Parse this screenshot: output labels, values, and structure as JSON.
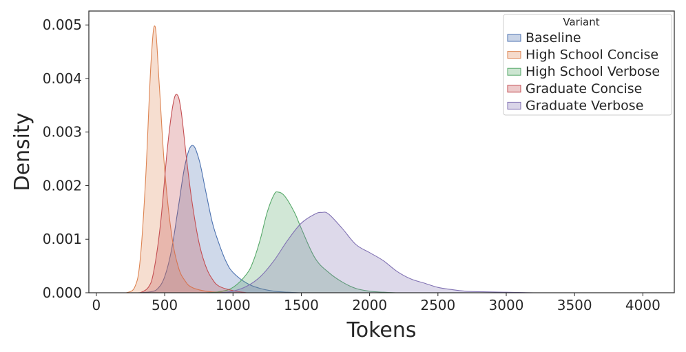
{
  "chart_data": {
    "type": "area",
    "title": "",
    "xlabel": "Tokens",
    "ylabel": "Density",
    "xlim": [
      -55,
      4230
    ],
    "ylim": [
      0,
      0.00526
    ],
    "x_ticks": [
      0,
      500,
      1000,
      1500,
      2000,
      2500,
      3000,
      3500,
      4000
    ],
    "x_tick_labels": [
      "0",
      "500",
      "1000",
      "1500",
      "2000",
      "2500",
      "3000",
      "3500",
      "4000"
    ],
    "y_ticks": [
      0,
      0.001,
      0.002,
      0.003,
      0.004,
      0.005
    ],
    "y_tick_labels": [
      "0.000",
      "0.001",
      "0.002",
      "0.003",
      "0.004",
      "0.005"
    ],
    "grid": false,
    "legend": {
      "title": "Variant",
      "placement": "top-right"
    },
    "series": [
      {
        "name": "Baseline",
        "color": "#4c72b0",
        "points": [
          [
            300,
            0
          ],
          [
            400,
            2e-05
          ],
          [
            450,
            8e-05
          ],
          [
            500,
            0.0003
          ],
          [
            550,
            0.0008
          ],
          [
            600,
            0.0016
          ],
          [
            650,
            0.0024
          ],
          [
            700,
            0.00275
          ],
          [
            750,
            0.0025
          ],
          [
            800,
            0.0019
          ],
          [
            850,
            0.0013
          ],
          [
            900,
            0.0009
          ],
          [
            950,
            0.00058
          ],
          [
            1000,
            0.00038
          ],
          [
            1100,
            0.00018
          ],
          [
            1200,
            8e-05
          ],
          [
            1300,
            3e-05
          ],
          [
            1400,
            1e-05
          ],
          [
            1500,
            0
          ]
        ]
      },
      {
        "name": "High School Concise",
        "color": "#dd8452",
        "points": [
          [
            220,
            0
          ],
          [
            280,
            0.0001
          ],
          [
            320,
            0.0006
          ],
          [
            360,
            0.0021
          ],
          [
            400,
            0.0043
          ],
          [
            430,
            0.00497
          ],
          [
            460,
            0.0039
          ],
          [
            500,
            0.0023
          ],
          [
            550,
            0.0011
          ],
          [
            600,
            0.00048
          ],
          [
            650,
            0.00022
          ],
          [
            700,
            0.0001
          ],
          [
            800,
            3e-05
          ],
          [
            900,
            1e-05
          ],
          [
            1000,
            0
          ]
        ]
      },
      {
        "name": "High School Verbose",
        "color": "#55a868",
        "points": [
          [
            800,
            0
          ],
          [
            900,
            2e-05
          ],
          [
            1000,
            0.0001
          ],
          [
            1100,
            0.00035
          ],
          [
            1150,
            0.0006
          ],
          [
            1200,
            0.001
          ],
          [
            1250,
            0.0015
          ],
          [
            1300,
            0.00183
          ],
          [
            1330,
            0.00188
          ],
          [
            1380,
            0.0018
          ],
          [
            1450,
            0.0015
          ],
          [
            1500,
            0.0012
          ],
          [
            1600,
            0.00065
          ],
          [
            1700,
            0.00038
          ],
          [
            1800,
            0.0002
          ],
          [
            1900,
            8e-05
          ],
          [
            2000,
            3e-05
          ],
          [
            2100,
            1e-05
          ],
          [
            2200,
            0
          ]
        ]
      },
      {
        "name": "Graduate Concise",
        "color": "#c44e52",
        "points": [
          [
            320,
            0
          ],
          [
            380,
            0.0001
          ],
          [
            420,
            0.0004
          ],
          [
            470,
            0.0013
          ],
          [
            520,
            0.0027
          ],
          [
            560,
            0.0035
          ],
          [
            590,
            0.0037
          ],
          [
            620,
            0.0034
          ],
          [
            660,
            0.0025
          ],
          [
            700,
            0.0017
          ],
          [
            750,
            0.00095
          ],
          [
            800,
            0.0005
          ],
          [
            850,
            0.00025
          ],
          [
            900,
            0.00012
          ],
          [
            1000,
            4e-05
          ],
          [
            1100,
            0
          ]
        ]
      },
      {
        "name": "Graduate Verbose",
        "color": "#8172b3",
        "points": [
          [
            900,
            0
          ],
          [
            1000,
            3e-05
          ],
          [
            1100,
            0.00012
          ],
          [
            1200,
            0.0003
          ],
          [
            1300,
            0.0006
          ],
          [
            1400,
            0.00098
          ],
          [
            1500,
            0.0013
          ],
          [
            1600,
            0.00147
          ],
          [
            1650,
            0.0015
          ],
          [
            1700,
            0.00147
          ],
          [
            1800,
            0.0012
          ],
          [
            1900,
            0.0009
          ],
          [
            2000,
            0.00075
          ],
          [
            2100,
            0.0006
          ],
          [
            2200,
            0.0004
          ],
          [
            2300,
            0.00026
          ],
          [
            2400,
            0.00018
          ],
          [
            2500,
            0.0001
          ],
          [
            2600,
            6e-05
          ],
          [
            2700,
            3e-05
          ],
          [
            2800,
            2e-05
          ],
          [
            3000,
            1e-05
          ],
          [
            3200,
            0
          ]
        ]
      }
    ]
  }
}
